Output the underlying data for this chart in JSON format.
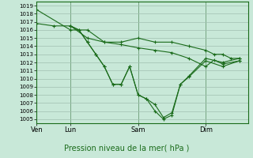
{
  "title": "Pression niveau de la mer( hPa )",
  "ylabel_ticks": [
    1005,
    1006,
    1007,
    1008,
    1009,
    1010,
    1011,
    1012,
    1013,
    1014,
    1015,
    1016,
    1017,
    1018,
    1019
  ],
  "ylim": [
    1004.5,
    1019.5
  ],
  "bg_color": "#c8e8d8",
  "grid_color": "#a0bfb0",
  "line_color": "#1a6b1a",
  "marker": "+",
  "x_ticks": [
    0,
    16,
    48,
    80
  ],
  "x_tick_labels": [
    "Ven",
    "Lun",
    "Sam",
    "Dim"
  ],
  "xlim": [
    0,
    100
  ],
  "series": [
    [
      1018.5,
      1016.0,
      1016.0,
      1014.5,
      1014.5,
      1015.0,
      1014.5,
      1014.5,
      1014.0,
      1013.5,
      1013.0,
      1013.0,
      1012.5,
      1012.5
    ],
    [
      1016.5,
      1016.0,
      1014.5,
      1013.0,
      1011.5,
      1009.3,
      1009.3,
      1011.5,
      1008.0,
      1007.5,
      1006.8,
      1005.2,
      1005.8,
      1009.3,
      1010.3,
      1012.5,
      1012.0,
      1012.5
    ],
    [
      1016.5,
      1016.0,
      1014.5,
      1013.0,
      1011.5,
      1009.3,
      1009.3,
      1011.5,
      1008.0,
      1007.5,
      1006.0,
      1005.0,
      1005.5,
      1009.3,
      1010.2,
      1012.2,
      1011.5,
      1012.2
    ],
    [
      1016.8,
      1016.5,
      1016.5,
      1015.0,
      1014.5,
      1014.2,
      1013.8,
      1013.5,
      1013.2,
      1012.5,
      1011.5,
      1012.3,
      1011.8,
      1012.2
    ]
  ],
  "series_x": [
    [
      0,
      16,
      24,
      32,
      40,
      48,
      56,
      64,
      72,
      80,
      84,
      88,
      92,
      96
    ],
    [
      16,
      20,
      24,
      28,
      32,
      36,
      40,
      44,
      48,
      52,
      56,
      60,
      64,
      68,
      72,
      80,
      88,
      96
    ],
    [
      16,
      20,
      24,
      28,
      32,
      36,
      40,
      44,
      48,
      52,
      56,
      60,
      64,
      68,
      72,
      80,
      88,
      96
    ],
    [
      0,
      8,
      16,
      24,
      32,
      40,
      48,
      56,
      64,
      72,
      80,
      84,
      88,
      96
    ]
  ],
  "vlines": [
    0,
    16,
    48,
    80
  ]
}
